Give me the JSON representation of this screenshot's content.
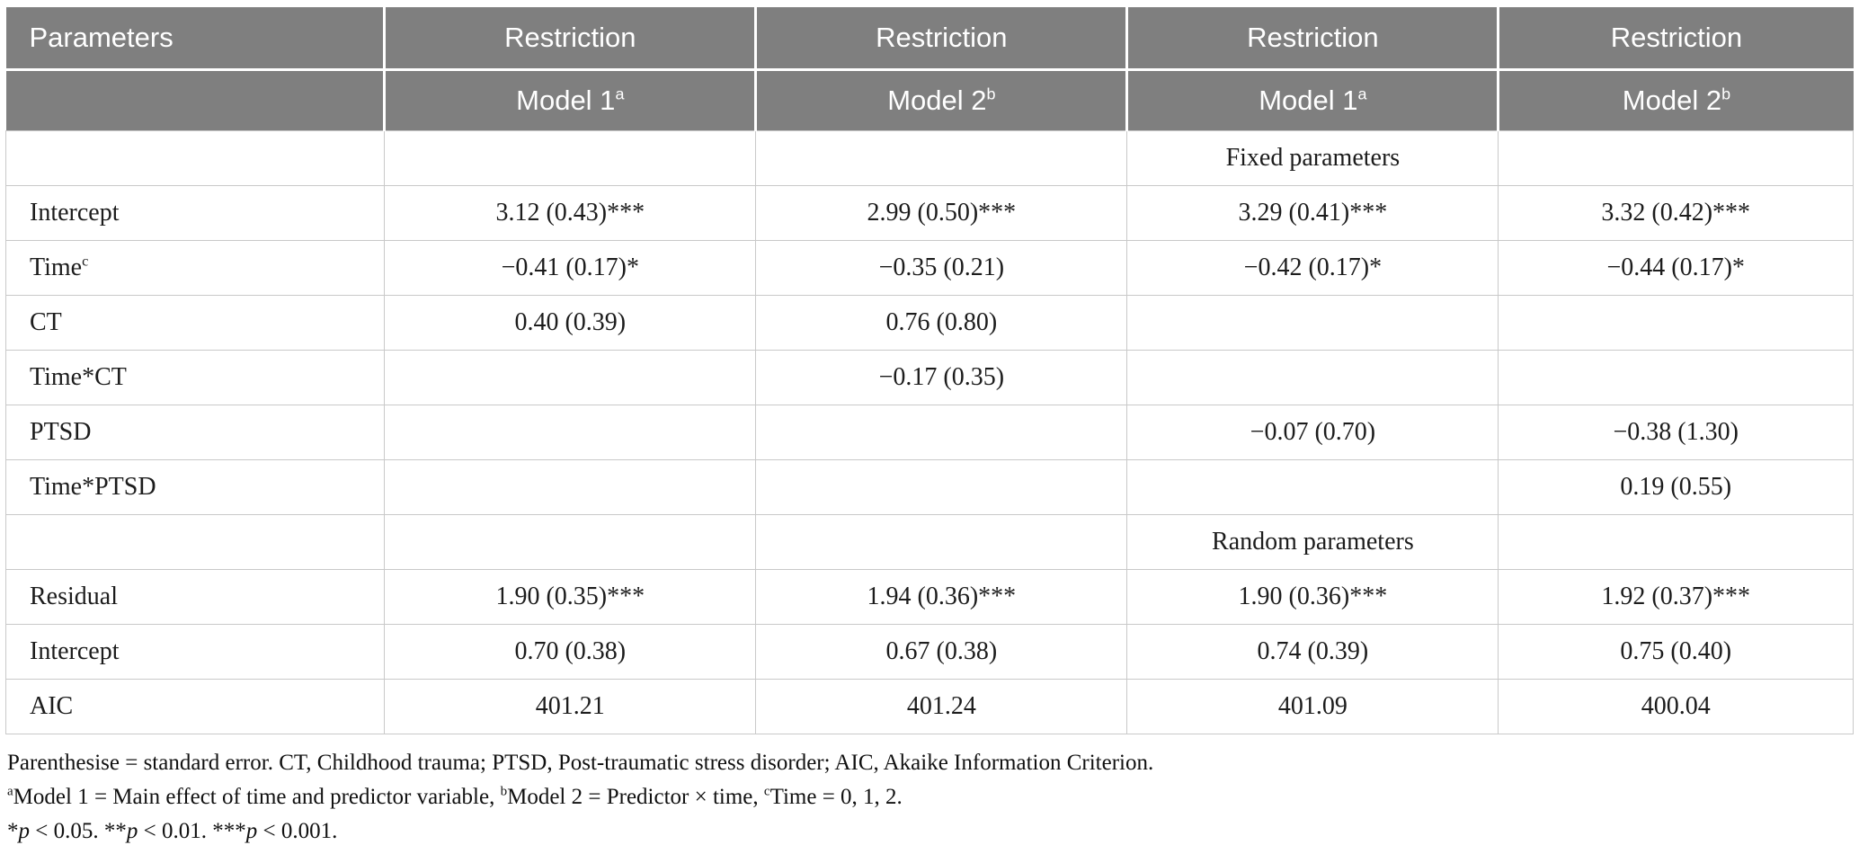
{
  "colors": {
    "header_background": "#7f7f7f",
    "header_text": "#ffffff",
    "body_text": "#1c1c1c",
    "grid_line": "#c9c9c9"
  },
  "table": {
    "header_row1": [
      "Parameters",
      "Restriction",
      "Restriction",
      "Restriction",
      "Restriction"
    ],
    "header_row2": [
      {
        "t": ""
      },
      {
        "t": "Model 1",
        "sup": "a"
      },
      {
        "t": "Model 2",
        "sup": "b"
      },
      {
        "t": "Model 1",
        "sup": "a"
      },
      {
        "t": "Model 2",
        "sup": "b"
      }
    ],
    "rows": [
      {
        "type": "section",
        "cells": [
          {
            "t": ""
          },
          {
            "t": ""
          },
          {
            "t": ""
          },
          {
            "t": "Fixed parameters"
          },
          {
            "t": ""
          }
        ]
      },
      {
        "type": "data",
        "cells": [
          {
            "t": "Intercept"
          },
          {
            "t": "3.12 (0.43)***"
          },
          {
            "t": "2.99 (0.50)***"
          },
          {
            "t": "3.29 (0.41)***"
          },
          {
            "t": "3.32 (0.42)***"
          }
        ]
      },
      {
        "type": "data",
        "cells": [
          {
            "t": "Time",
            "sup": "c"
          },
          {
            "t": "−0.41 (0.17)*"
          },
          {
            "t": "−0.35 (0.21)"
          },
          {
            "t": "−0.42 (0.17)*"
          },
          {
            "t": "−0.44 (0.17)*"
          }
        ]
      },
      {
        "type": "data",
        "cells": [
          {
            "t": "CT"
          },
          {
            "t": "0.40 (0.39)"
          },
          {
            "t": "0.76 (0.80)"
          },
          {
            "t": ""
          },
          {
            "t": ""
          }
        ]
      },
      {
        "type": "data",
        "cells": [
          {
            "t": "Time*CT"
          },
          {
            "t": ""
          },
          {
            "t": "−0.17 (0.35)"
          },
          {
            "t": ""
          },
          {
            "t": ""
          }
        ]
      },
      {
        "type": "data",
        "cells": [
          {
            "t": "PTSD"
          },
          {
            "t": ""
          },
          {
            "t": ""
          },
          {
            "t": "−0.07 (0.70)"
          },
          {
            "t": "−0.38 (1.30)"
          }
        ]
      },
      {
        "type": "data",
        "cells": [
          {
            "t": "Time*PTSD"
          },
          {
            "t": ""
          },
          {
            "t": ""
          },
          {
            "t": ""
          },
          {
            "t": "0.19 (0.55)"
          }
        ]
      },
      {
        "type": "section",
        "cells": [
          {
            "t": ""
          },
          {
            "t": ""
          },
          {
            "t": ""
          },
          {
            "t": "Random parameters"
          },
          {
            "t": ""
          }
        ]
      },
      {
        "type": "data",
        "cells": [
          {
            "t": "Residual"
          },
          {
            "t": "1.90 (0.35)***"
          },
          {
            "t": "1.94 (0.36)***"
          },
          {
            "t": "1.90 (0.36)***"
          },
          {
            "t": "1.92 (0.37)***"
          }
        ]
      },
      {
        "type": "data",
        "cells": [
          {
            "t": "Intercept"
          },
          {
            "t": "0.70 (0.38)"
          },
          {
            "t": "0.67 (0.38)"
          },
          {
            "t": "0.74 (0.39)"
          },
          {
            "t": "0.75 (0.40)"
          }
        ]
      },
      {
        "type": "data",
        "cells": [
          {
            "t": "AIC"
          },
          {
            "t": "401.21"
          },
          {
            "t": "401.24"
          },
          {
            "t": "401.09"
          },
          {
            "t": "400.04"
          }
        ]
      }
    ]
  },
  "footnotes": {
    "line1": [
      {
        "t": "Parenthesise = standard error. CT, Childhood trauma; PTSD, Post-traumatic stress disorder; AIC, Akaike Information Criterion."
      }
    ],
    "line2": [
      {
        "t": "a",
        "s": "sup"
      },
      {
        "t": "Model 1 = Main effect of time and predictor variable, "
      },
      {
        "t": "b",
        "s": "sup"
      },
      {
        "t": "Model 2 = Predictor × time, "
      },
      {
        "t": "c",
        "s": "sup"
      },
      {
        "t": "Time = 0, 1, 2."
      }
    ],
    "line3": [
      {
        "t": "*"
      },
      {
        "t": "p",
        "s": "i"
      },
      {
        "t": " < 0.05. **"
      },
      {
        "t": "p",
        "s": "i"
      },
      {
        "t": " < 0.01. ***"
      },
      {
        "t": "p",
        "s": "i"
      },
      {
        "t": " < 0.001."
      }
    ]
  }
}
